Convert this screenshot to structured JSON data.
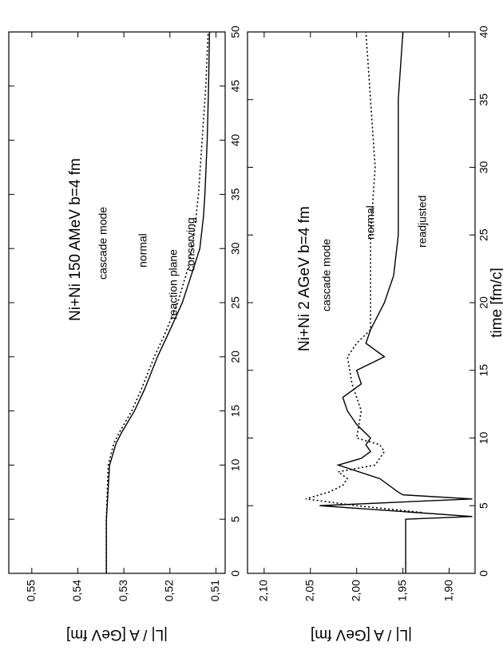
{
  "chart_data": [
    {
      "type": "line",
      "annotations": [
        "Ni+Ni  150 AMeV  b=4 fm",
        "cascade mode",
        "normal",
        "reaction plane",
        "conserving"
      ],
      "ylabel": "|L| / A   [GeV fm]",
      "xlim": [
        0,
        50
      ],
      "ylim": [
        0.508,
        0.555
      ],
      "xticks": [
        0,
        5,
        10,
        15,
        20,
        25,
        30,
        35,
        40,
        45,
        50
      ],
      "yticks": [
        {
          "value": 0.51,
          "label": "0,51"
        },
        {
          "value": 0.52,
          "label": "0,52"
        },
        {
          "value": 0.53,
          "label": "0,53"
        },
        {
          "value": 0.54,
          "label": "0,54"
        },
        {
          "value": 0.55,
          "label": "0,55"
        }
      ],
      "series": [
        {
          "style": "solid",
          "color": "#000000",
          "x": [
            0,
            5,
            10,
            12,
            13,
            15,
            17,
            20,
            22,
            25,
            28,
            30,
            33,
            35,
            40,
            45,
            50
          ],
          "values": [
            0.5338,
            0.5338,
            0.5331,
            0.5317,
            0.5305,
            0.5277,
            0.5255,
            0.5227,
            0.5205,
            0.5173,
            0.515,
            0.5135,
            0.5127,
            0.5124,
            0.5119,
            0.5116,
            0.5114
          ]
        },
        {
          "style": "dotted",
          "color": "#000000",
          "x": [
            0,
            5,
            10,
            12,
            13,
            15,
            17,
            20,
            22,
            25,
            28,
            30,
            33,
            35,
            40,
            45,
            50
          ],
          "values": [
            0.5338,
            0.5338,
            0.5334,
            0.5322,
            0.531,
            0.5283,
            0.5262,
            0.5234,
            0.5212,
            0.5183,
            0.5162,
            0.5152,
            0.5143,
            0.5138,
            0.513,
            0.5122,
            0.5117
          ]
        }
      ]
    },
    {
      "type": "line",
      "annotations": [
        "Ni+Ni  2 AGeV  b=4 fm",
        "cascade mode",
        "normal",
        "readjusted"
      ],
      "ylabel": "|L| / A   [GeV fm]",
      "xlabel": "time  [fm/c]",
      "xlim": [
        0,
        40
      ],
      "ylim": [
        1.872,
        2.118
      ],
      "xticks": [
        0,
        5,
        10,
        15,
        20,
        25,
        30,
        35,
        40
      ],
      "yticks": [
        {
          "value": 1.9,
          "label": "1,90"
        },
        {
          "value": 1.95,
          "label": "1,95"
        },
        {
          "value": 2.0,
          "label": "2,00"
        },
        {
          "value": 2.05,
          "label": "2,05"
        },
        {
          "value": 2.1,
          "label": "2,10"
        }
      ],
      "series": [
        {
          "style": "solid",
          "color": "#000000",
          "x": [
            0,
            4,
            4.2,
            5,
            5.5,
            5.8,
            6,
            7,
            8,
            8.5,
            9,
            9.5,
            10,
            11,
            12,
            13,
            14,
            15,
            16,
            17,
            18,
            20,
            22,
            25,
            30,
            35,
            40
          ],
          "values": [
            1.947,
            1.947,
            1.875,
            2.04,
            1.875,
            1.95,
            1.955,
            1.975,
            2.02,
            1.995,
            1.985,
            1.99,
            1.985,
            2.0,
            2.01,
            2.015,
            1.995,
            2.0,
            1.97,
            1.99,
            1.985,
            1.97,
            1.96,
            1.955,
            1.955,
            1.955,
            1.95
          ]
        },
        {
          "style": "dotted",
          "color": "#000000",
          "x": [
            4.5,
            5,
            5.5,
            6,
            6.5,
            7,
            7.5,
            8,
            8.5,
            9,
            9.5,
            10,
            12,
            14,
            16,
            17,
            18,
            20,
            25,
            30,
            35,
            40
          ],
          "values": [
            1.93,
            2.0,
            2.055,
            2.03,
            2.015,
            2.01,
            2.02,
            1.98,
            1.975,
            1.97,
            1.975,
            2.0,
            1.995,
            2.005,
            2.01,
            2.0,
            1.985,
            1.985,
            1.985,
            1.98,
            1.985,
            1.99
          ]
        }
      ]
    }
  ]
}
